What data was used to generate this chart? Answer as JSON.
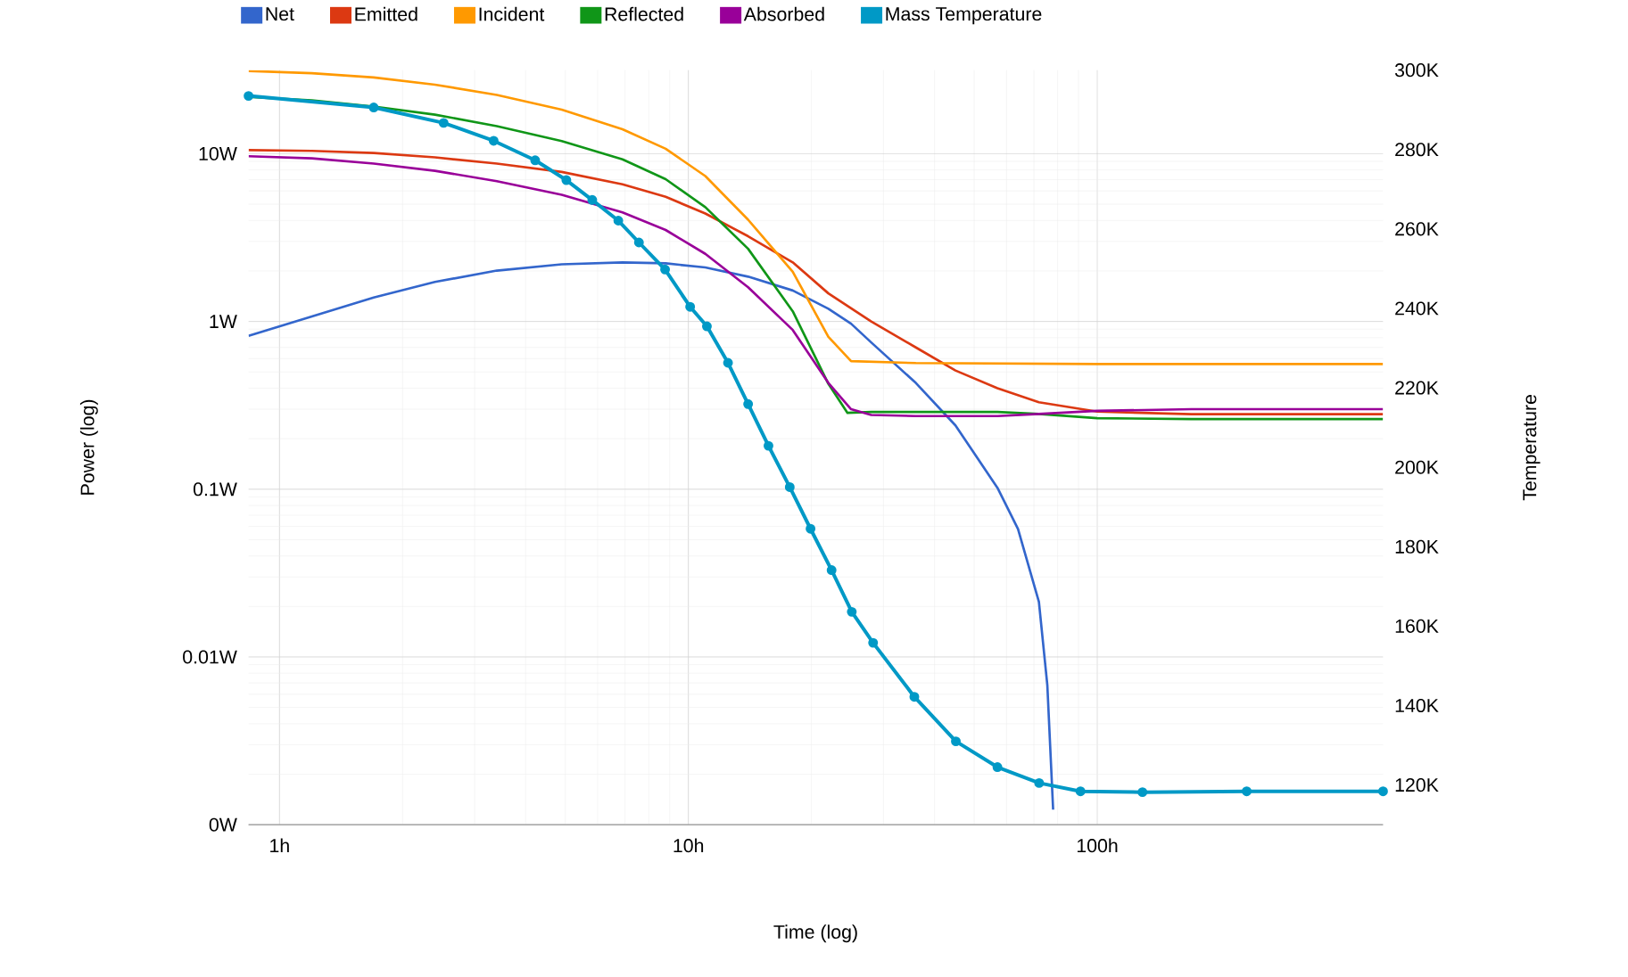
{
  "chart_data": {
    "type": "line",
    "xlabel": "Time (log)",
    "ylabel": "Power (log)",
    "y2label": "Temperature",
    "log": "xy",
    "grid": true,
    "legend": "top",
    "xlim": [
      0.84,
      500
    ],
    "ylim": [
      0.001,
      31.5
    ],
    "y2lim": [
      110,
      300
    ],
    "xticks": [
      {
        "value": 1,
        "label": "1h"
      },
      {
        "value": 10,
        "label": "10h"
      },
      {
        "value": 100,
        "label": "100h"
      }
    ],
    "yticks": [
      {
        "value": 0.001,
        "label": "0W"
      },
      {
        "value": 0.01,
        "label": "0.01W"
      },
      {
        "value": 0.1,
        "label": "0.1W"
      },
      {
        "value": 1,
        "label": "1W"
      },
      {
        "value": 10,
        "label": "10W"
      }
    ],
    "y2ticks": [
      {
        "value": 120,
        "label": "120K"
      },
      {
        "value": 140,
        "label": "140K"
      },
      {
        "value": 160,
        "label": "160K"
      },
      {
        "value": 180,
        "label": "180K"
      },
      {
        "value": 200,
        "label": "200K"
      },
      {
        "value": 220,
        "label": "220K"
      },
      {
        "value": 240,
        "label": "240K"
      },
      {
        "value": 260,
        "label": "260K"
      },
      {
        "value": 280,
        "label": "280K"
      },
      {
        "value": 300,
        "label": "300K"
      }
    ],
    "series": [
      {
        "name": "Net",
        "color": "#3366cc",
        "x": [
          0.84,
          1.2,
          1.7,
          2.4,
          3.4,
          4.9,
          6.9,
          8.8,
          11,
          14,
          18,
          22,
          25,
          28,
          36,
          45,
          57,
          64,
          72,
          75.5,
          78
        ],
        "values": [
          0.82,
          1.07,
          1.39,
          1.72,
          2.01,
          2.19,
          2.25,
          2.22,
          2.1,
          1.85,
          1.53,
          1.19,
          0.97,
          0.75,
          0.43,
          0.24,
          0.102,
          0.058,
          0.0213,
          0.0068,
          0.00123
        ]
      },
      {
        "name": "Emitted",
        "color": "#dc3912",
        "x": [
          0.84,
          1.2,
          1.7,
          2.4,
          3.4,
          4.9,
          6.9,
          8.8,
          11,
          14,
          18,
          22,
          28,
          36,
          45,
          57,
          72,
          100,
          170,
          500
        ],
        "values": [
          10.5,
          10.4,
          10.1,
          9.51,
          8.73,
          7.79,
          6.57,
          5.53,
          4.4,
          3.22,
          2.25,
          1.47,
          1.0,
          0.7,
          0.51,
          0.4,
          0.33,
          0.29,
          0.28,
          0.28
        ]
      },
      {
        "name": "Incident",
        "color": "#ff9900",
        "x": [
          0.84,
          1.2,
          1.7,
          2.4,
          3.4,
          4.9,
          6.9,
          8.8,
          11,
          14,
          18,
          22,
          25,
          36,
          100,
          500
        ],
        "values": [
          31.1,
          30.2,
          28.5,
          25.8,
          22.4,
          18.3,
          14.0,
          10.7,
          7.36,
          4.04,
          1.98,
          0.81,
          0.58,
          0.565,
          0.557,
          0.557
        ]
      },
      {
        "name": "Reflected",
        "color": "#109618",
        "x": [
          0.84,
          1.2,
          1.7,
          2.4,
          3.4,
          4.9,
          6.9,
          8.8,
          11,
          14,
          18,
          22,
          24.5,
          28,
          36,
          57,
          72,
          100,
          170,
          500
        ],
        "values": [
          21.8,
          20.8,
          19.1,
          17.1,
          14.6,
          11.9,
          9.25,
          7.05,
          4.8,
          2.71,
          1.15,
          0.425,
          0.285,
          0.289,
          0.289,
          0.289,
          0.281,
          0.265,
          0.262,
          0.262
        ]
      },
      {
        "name": "Absorbed",
        "color": "#990099",
        "x": [
          0.84,
          1.2,
          1.7,
          2.4,
          3.4,
          4.9,
          6.9,
          8.8,
          11,
          14,
          18,
          22,
          25,
          28,
          36,
          57,
          72,
          100,
          170,
          500
        ],
        "values": [
          9.66,
          9.38,
          8.73,
          7.91,
          6.86,
          5.69,
          4.47,
          3.51,
          2.53,
          1.6,
          0.89,
          0.43,
          0.3,
          0.277,
          0.273,
          0.273,
          0.281,
          0.293,
          0.3,
          0.3
        ]
      },
      {
        "name": "Mass Temperature",
        "color": "#0099c6",
        "axis": "y2",
        "marker": "circle",
        "x": [
          0.84,
          1.7,
          2.52,
          3.34,
          4.22,
          5.03,
          5.82,
          6.74,
          7.57,
          8.77,
          10.1,
          11.1,
          12.5,
          14,
          15.7,
          17.7,
          19.9,
          22.4,
          25.1,
          28.3,
          35.7,
          45.1,
          57,
          72.1,
          91,
          129,
          232,
          500
        ],
        "values": [
          293.5,
          290.6,
          286.7,
          282.2,
          277.3,
          272.3,
          267.3,
          262.1,
          256.6,
          249.8,
          240.4,
          235.5,
          226.3,
          215.9,
          205.4,
          195.0,
          184.5,
          174.1,
          163.6,
          155.8,
          142.2,
          131.0,
          124.5,
          120.5,
          118.4,
          118.2,
          118.4,
          118.4
        ]
      }
    ]
  }
}
